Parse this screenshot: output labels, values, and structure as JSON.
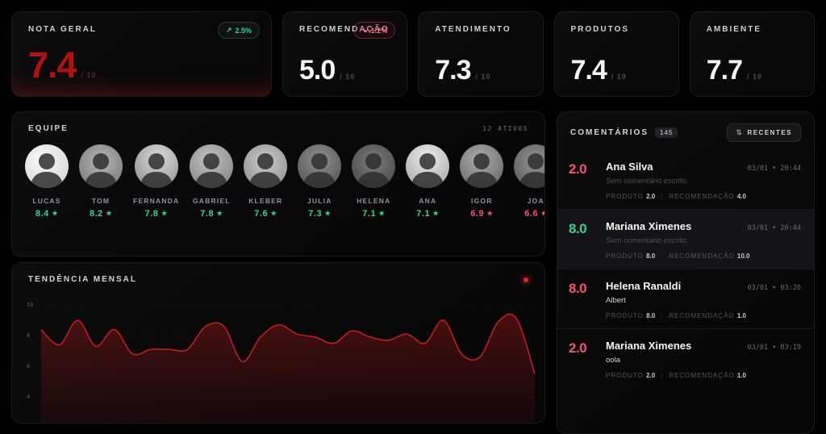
{
  "kpis": [
    {
      "label": "NOTA GERAL",
      "value": "7.4",
      "suffix": "/ 10",
      "accent": "red",
      "badge": {
        "direction": "up",
        "icon": "trend-up-icon",
        "glyph": "↗",
        "text": "2.5%"
      }
    },
    {
      "label": "RECOMENDAÇÃO",
      "value": "5.0",
      "suffix": "/ 10",
      "accent": "white",
      "badge": {
        "direction": "down",
        "icon": "trend-down-icon",
        "glyph": "↘",
        "text": "1.2%"
      }
    },
    {
      "label": "ATENDIMENTO",
      "value": "7.3",
      "suffix": "/ 10",
      "accent": "white",
      "badge": null
    },
    {
      "label": "PRODUTOS",
      "value": "7.4",
      "suffix": "/ 10",
      "accent": "white",
      "badge": null
    },
    {
      "label": "AMBIENTE",
      "value": "7.7",
      "suffix": "/ 10",
      "accent": "white",
      "badge": null
    }
  ],
  "team": {
    "title": "EQUIPE",
    "status": "12 ATIVOS",
    "star_glyph": "★",
    "members": [
      {
        "name": "LUCAS",
        "score": "8.4",
        "tone": "green"
      },
      {
        "name": "TOM",
        "score": "8.2",
        "tone": "green"
      },
      {
        "name": "FERNANDA",
        "score": "7.8",
        "tone": "green"
      },
      {
        "name": "GABRIEL",
        "score": "7.8",
        "tone": "green"
      },
      {
        "name": "KLEBER",
        "score": "7.6",
        "tone": "green"
      },
      {
        "name": "JULIA",
        "score": "7.3",
        "tone": "green"
      },
      {
        "name": "HELENA",
        "score": "7.1",
        "tone": "green"
      },
      {
        "name": "ANA",
        "score": "7.1",
        "tone": "green"
      },
      {
        "name": "IGOR",
        "score": "6.9",
        "tone": "red"
      },
      {
        "name": "JOA",
        "score": "6.6",
        "tone": "red"
      }
    ]
  },
  "trend": {
    "title": "TENDÊNCIA MENSAL"
  },
  "chart_data": {
    "type": "area",
    "title": "TENDÊNCIA MENSAL",
    "values": [
      8.4,
      7.4,
      9.0,
      7.3,
      8.4,
      6.8,
      7.1,
      7.1,
      7.1,
      8.6,
      8.6,
      6.3,
      7.9,
      8.7,
      8.1,
      7.9,
      7.5,
      8.3,
      7.9,
      7.7,
      8.1,
      7.5,
      9.0,
      6.8,
      6.6,
      8.9,
      9.1,
      5.5
    ],
    "xlabel": "",
    "ylabel": "",
    "ylim": [
      4,
      10
    ],
    "yticks": [
      10,
      8,
      6,
      4
    ],
    "grid": "dashed-horizontal",
    "line_color": "#c81e1e",
    "fill_color": "rgba(150,20,20,0.30)",
    "legend_dot_color": "#dc2626"
  },
  "comments": {
    "title": "COMENTÁRIOS",
    "count": "145",
    "sort_glyph": "⇅",
    "sort_label": "RECENTES",
    "labels": {
      "produto": "PRODUTO",
      "recomendacao": "RECOMENDAÇÃO",
      "divider": "|"
    },
    "items": [
      {
        "score": "2.0",
        "tone": "red",
        "name": "Ana Silva",
        "date": "03/01 • 20:44",
        "text": "Sem comentário escrito.",
        "muted": true,
        "highlight": false,
        "produto": "2.0",
        "recomendacao": "4.0"
      },
      {
        "score": "8.0",
        "tone": "green",
        "name": "Mariana Ximenes",
        "date": "03/01 • 20:44",
        "text": "Sem comentário escrito.",
        "muted": true,
        "highlight": true,
        "produto": "8.0",
        "recomendacao": "10.0"
      },
      {
        "score": "8.0",
        "tone": "red",
        "name": "Helena Ranaldi",
        "date": "03/01 • 03:26",
        "text": "Albert",
        "muted": false,
        "highlight": false,
        "produto": "8.0",
        "recomendacao": "1.0"
      },
      {
        "score": "2.0",
        "tone": "red",
        "name": "Mariana Ximenes",
        "date": "03/01 • 03:19",
        "text": "oola",
        "muted": false,
        "highlight": false,
        "produto": "2.0",
        "recomendacao": "1.0"
      }
    ]
  },
  "colors": {
    "green": "#34d399",
    "red": "#f4536e",
    "value_red": "#b01212",
    "chart_line": "#c81e1e"
  }
}
